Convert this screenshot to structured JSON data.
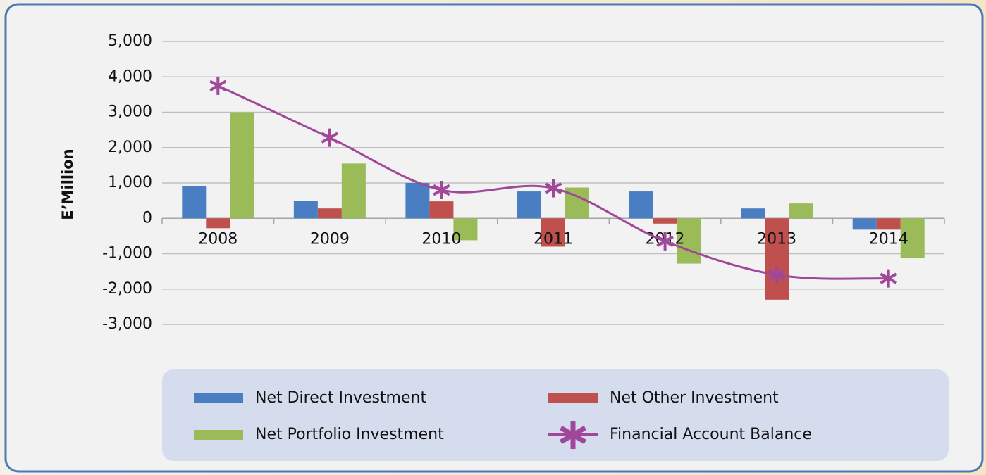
{
  "chart_data": {
    "type": "bar_line",
    "y_axis_label": "E’Million",
    "categories": [
      "2008",
      "2009",
      "2010",
      "2011",
      "2012",
      "2013",
      "2014"
    ],
    "series": [
      {
        "name": "Net Direct Investment",
        "type": "bar",
        "color": "#4a7ec2",
        "values": [
          920,
          500,
          1000,
          760,
          760,
          280,
          -320
        ]
      },
      {
        "name": "Net Other Investment",
        "type": "bar",
        "color": "#c0504d",
        "values": [
          -280,
          280,
          480,
          -800,
          -150,
          -2300,
          -320
        ]
      },
      {
        "name": "Net Portfolio Investment",
        "type": "bar",
        "color": "#9bbb59",
        "values": [
          3000,
          1550,
          -620,
          870,
          -1280,
          420,
          -1130
        ]
      },
      {
        "name": "Financial Account Balance",
        "type": "line",
        "color": "#a0479a",
        "values": [
          3750,
          2280,
          800,
          850,
          -650,
          -1600,
          -1700
        ]
      }
    ],
    "ylim": [
      -3000,
      5000
    ],
    "yticks": [
      {
        "value": -3000,
        "label": "-3,000"
      },
      {
        "value": -2000,
        "label": "-2,000"
      },
      {
        "value": -1000,
        "label": "-1,000"
      },
      0,
      {
        "value": 1000,
        "label": "1,000"
      },
      {
        "value": 2000,
        "label": "2,000"
      },
      {
        "value": 3000,
        "label": "3,000"
      },
      {
        "value": 4000,
        "label": "4,000"
      },
      {
        "value": 5000,
        "label": "5,000"
      }
    ],
    "grid": true,
    "legend_position": "bottom"
  }
}
